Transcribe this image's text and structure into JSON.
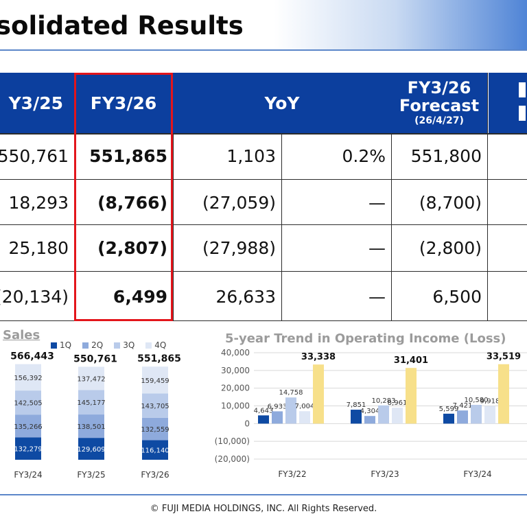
{
  "title": "solidated Results",
  "table": {
    "headers": {
      "col1": "Y3/25",
      "col2": "FY3/26",
      "yoy": "YoY",
      "forecast_line1": "FY3/26",
      "forecast_line2": "Forecast",
      "forecast_date": "(26/4/27)"
    },
    "rows": [
      {
        "prev": "550,761",
        "curr": "551,865",
        "yoy_abs": "1,103",
        "yoy_pct": "0.2%",
        "forecast": "551,800"
      },
      {
        "prev": "18,293",
        "curr": "(8,766)",
        "yoy_abs": "(27,059)",
        "yoy_pct": "—",
        "forecast": "(8,700)"
      },
      {
        "prev": "25,180",
        "curr": "(2,807)",
        "yoy_abs": "(27,988)",
        "yoy_pct": "—",
        "forecast": "(2,800)"
      },
      {
        "prev": "(20,134)",
        "curr": "6,499",
        "yoy_abs": "26,633",
        "yoy_pct": "—",
        "forecast": "6,500"
      }
    ]
  },
  "colors": {
    "header_blue": "#0c3f9e",
    "highlight_red": "#e3151b",
    "q1": "#0e4aa3",
    "q2": "#8eaadc",
    "q3": "#b9cbea",
    "q4": "#dfe7f5",
    "annual": "#f7e08a"
  },
  "chart_data": [
    {
      "type": "bar",
      "title": "Sales",
      "stacked": true,
      "categories": [
        "FY3/24",
        "FY3/25",
        "FY3/26"
      ],
      "legend": [
        "1Q",
        "2Q",
        "3Q",
        "4Q"
      ],
      "totals": [
        "566,443",
        "550,761",
        "551,865"
      ],
      "series": [
        {
          "name": "1Q",
          "values": [
            132279,
            129609,
            116140
          ],
          "labels": [
            "132,279",
            "129,609",
            "116,140"
          ]
        },
        {
          "name": "2Q",
          "values": [
            135266,
            138501,
            132559
          ],
          "labels": [
            "135,266",
            "138,501",
            "132,559"
          ]
        },
        {
          "name": "3Q",
          "values": [
            142505,
            145177,
            143705
          ],
          "labels": [
            "142,505",
            "145,177",
            "143,705"
          ]
        },
        {
          "name": "4Q",
          "values": [
            156392,
            137472,
            159459
          ],
          "labels": [
            "156,392",
            "137,472",
            "159,459"
          ]
        }
      ]
    },
    {
      "type": "bar",
      "title": "5-year Trend in Operating Income (Loss)",
      "categories": [
        "FY3/22",
        "FY3/23",
        "FY3/24"
      ],
      "yticks": [
        "40,000",
        "30,000",
        "20,000",
        "10,000",
        "0",
        "(10,000)",
        "(20,000)"
      ],
      "ylim": [
        -20000,
        40000
      ],
      "series": [
        {
          "name": "1Q",
          "values": [
            4643,
            7851,
            5599
          ],
          "labels": [
            "4,643",
            "7,851",
            "5,599"
          ]
        },
        {
          "name": "2Q",
          "values": [
            6933,
            4304,
            7421
          ],
          "labels": [
            "6,933",
            "4,304",
            "7,421"
          ]
        },
        {
          "name": "3Q",
          "values": [
            14758,
            10283,
            10580
          ],
          "labels": [
            "14,758",
            "10,283",
            "10,580"
          ]
        },
        {
          "name": "4Q",
          "values": [
            7004,
            8961,
            9918
          ],
          "labels": [
            "7,004",
            "8,961",
            "9,918"
          ]
        },
        {
          "name": "",
          "values": [
            33338,
            31401,
            33519
          ],
          "labels": [
            "33,338",
            "31,401",
            "33,519"
          ]
        }
      ]
    }
  ],
  "footer": "© FUJI MEDIA HOLDINGS, INC. All Rights Reserved."
}
